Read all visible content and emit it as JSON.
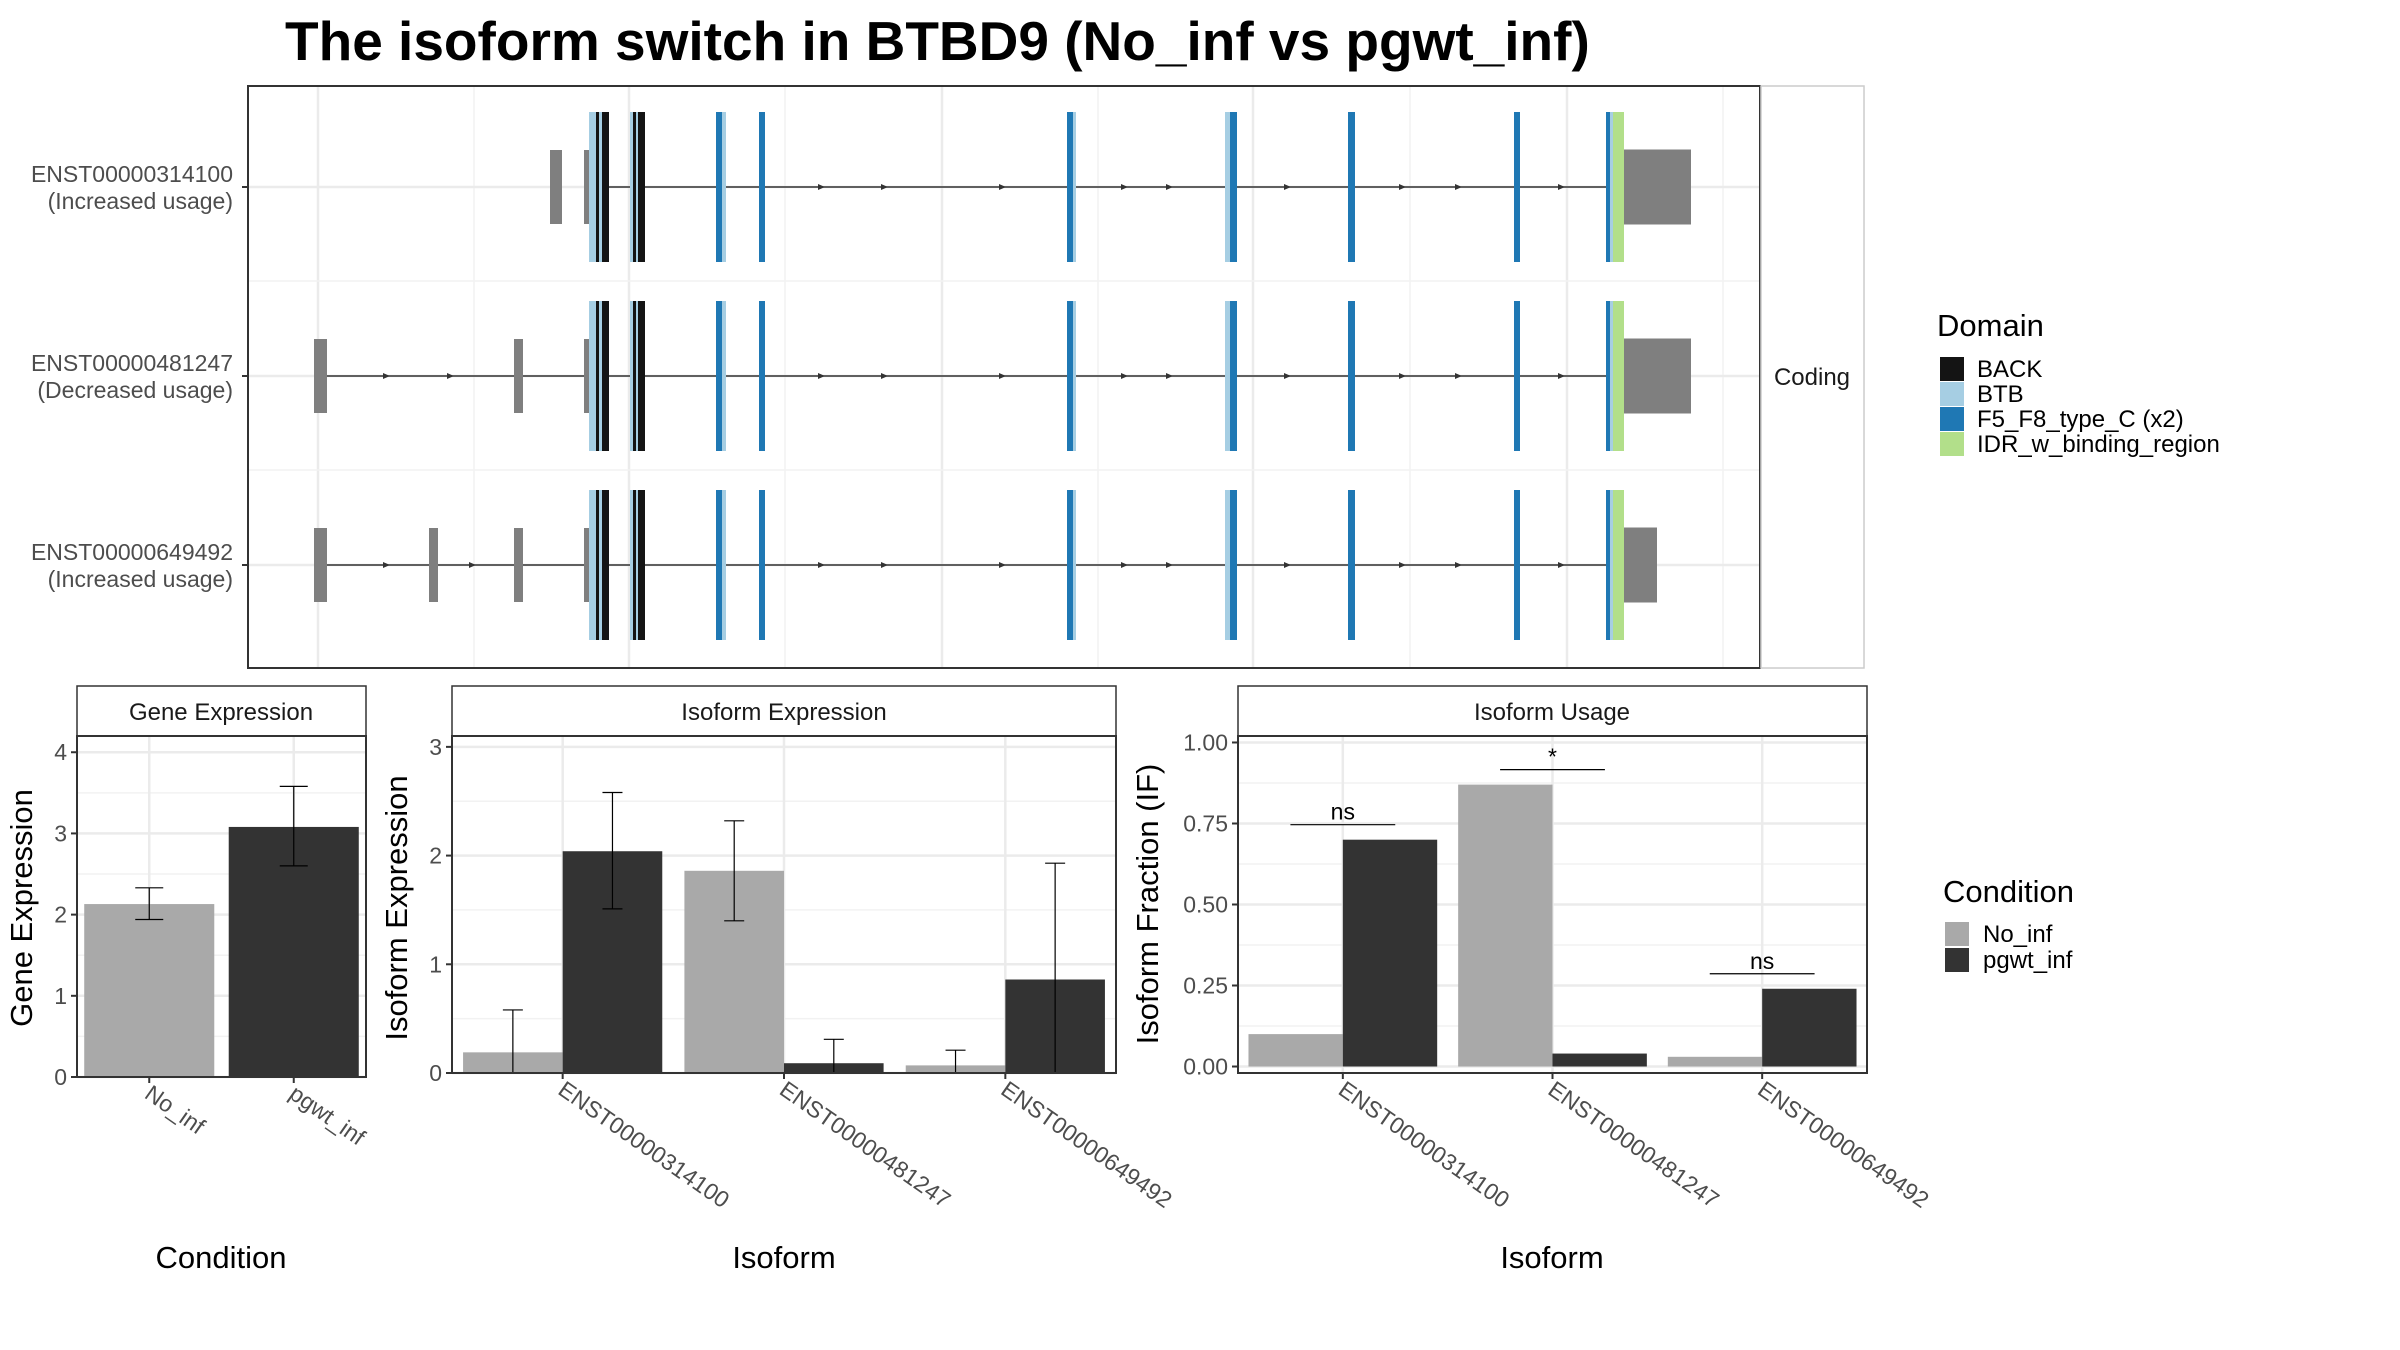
{
  "chart_data": [
    {
      "type": "gene-structure",
      "title": "The isoform switch in BTBD9 (No_inf vs pgwt_inf)",
      "facet_label": "Coding",
      "isoforms": [
        {
          "id": "ENST00000314100",
          "usage": "(Increased usage)"
        },
        {
          "id": "ENST00000481247",
          "usage": "(Decreased usage)"
        },
        {
          "id": "ENST00000649492",
          "usage": "(Increased usage)"
        }
      ],
      "legend": {
        "title": "Domain",
        "items": [
          {
            "label": "BACK",
            "color": "#141414"
          },
          {
            "label": "BTB",
            "color": "#a6cee3"
          },
          {
            "label": "F5_F8_type_C (x2)",
            "color": "#1f78b4"
          },
          {
            "label": "IDR_w_binding_region",
            "color": "#b2df8a"
          }
        ]
      },
      "exon_color": "#7f7f7f"
    },
    {
      "type": "bar",
      "title": "Gene Expression",
      "xlabel": "Condition",
      "ylabel": "Gene Expression",
      "categories": [
        "No_inf",
        "pgwt_inf"
      ],
      "values": [
        2.13,
        3.08
      ],
      "errors": [
        [
          1.94,
          2.33
        ],
        [
          2.6,
          3.58
        ]
      ],
      "ylim": [
        0,
        4.2
      ],
      "yticks": [
        "0",
        "1",
        "2",
        "3",
        "4"
      ]
    },
    {
      "type": "bar",
      "title": "Isoform Expression",
      "xlabel": "Isoform",
      "ylabel": "Isoform Expression",
      "categories": [
        "ENST00000314100",
        "ENST00000481247",
        "ENST00000649492"
      ],
      "series": [
        {
          "name": "No_inf",
          "values": [
            0.19,
            1.86,
            0.07
          ],
          "errors": [
            [
              0.0,
              0.58
            ],
            [
              1.4,
              2.32
            ],
            [
              0.0,
              0.21
            ]
          ]
        },
        {
          "name": "pgwt_inf",
          "values": [
            2.04,
            0.09,
            0.86
          ],
          "errors": [
            [
              1.51,
              2.58
            ],
            [
              0.0,
              0.31
            ],
            [
              0.0,
              1.93
            ]
          ]
        }
      ],
      "ylim": [
        0,
        3.1
      ],
      "yticks": [
        "0",
        "1",
        "2",
        "3"
      ]
    },
    {
      "type": "bar",
      "title": "Isoform Usage",
      "xlabel": "Isoform",
      "ylabel": "Isoform Fraction (IF)",
      "categories": [
        "ENST00000314100",
        "ENST00000481247",
        "ENST00000649492"
      ],
      "series": [
        {
          "name": "No_inf",
          "values": [
            0.1,
            0.87,
            0.03
          ]
        },
        {
          "name": "pgwt_inf",
          "values": [
            0.7,
            0.04,
            0.24
          ]
        }
      ],
      "significance": [
        "ns",
        "*",
        "ns"
      ],
      "ylim": [
        -0.02,
        1.02
      ],
      "yticks": [
        "0.00",
        "0.25",
        "0.50",
        "0.75",
        "1.00"
      ]
    }
  ],
  "condition_legend": {
    "title": "Condition",
    "items": [
      {
        "label": "No_inf",
        "color": "#a9a9a9"
      },
      {
        "label": "pgwt_inf",
        "color": "#333333"
      }
    ]
  }
}
